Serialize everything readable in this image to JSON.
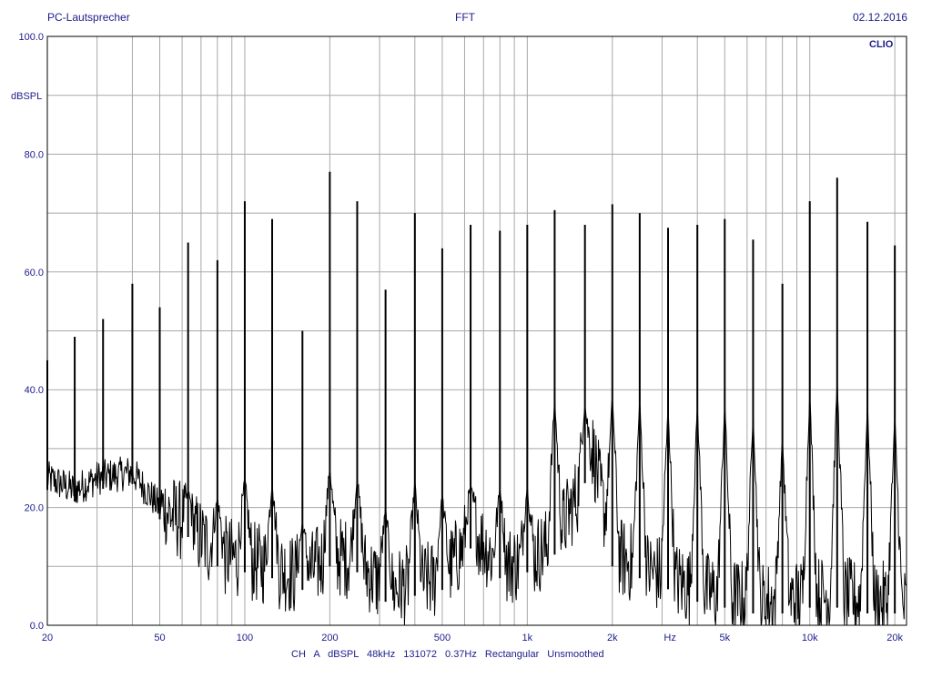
{
  "header": {
    "left": "PC-Lautsprecher",
    "center": "FFT",
    "right": "02.12.2016"
  },
  "brand": "CLIO",
  "footer": "CH A   dBSPL   48kHz   131072   0.37Hz   Rectangular   Unsmoothed",
  "colors": {
    "text": "#1c1c8c",
    "grid": "#a8a8a8",
    "trace": "#000000"
  },
  "chart_data": {
    "type": "line",
    "title": "FFT",
    "ylabel": "dBSPL",
    "xlabel": "Hz",
    "xscale": "log",
    "xlim": [
      20,
      22000
    ],
    "ylim": [
      0,
      100
    ],
    "grid": true,
    "y_ticks": [
      {
        "value": 0,
        "label": "0.0"
      },
      {
        "value": 20,
        "label": "20.0"
      },
      {
        "value": 40,
        "label": "40.0"
      },
      {
        "value": 60,
        "label": "60.0"
      },
      {
        "value": 80,
        "label": "80.0"
      },
      {
        "value": 100,
        "label": "100.0"
      }
    ],
    "x_ticks": [
      {
        "value": 20,
        "label": "20"
      },
      {
        "value": 50,
        "label": "50"
      },
      {
        "value": 100,
        "label": "100"
      },
      {
        "value": 200,
        "label": "200"
      },
      {
        "value": 500,
        "label": "500"
      },
      {
        "value": 1000,
        "label": "1k"
      },
      {
        "value": 2000,
        "label": "2k"
      },
      {
        "value": 3200,
        "label": "Hz"
      },
      {
        "value": 5000,
        "label": "5k"
      },
      {
        "value": 10000,
        "label": "10k"
      },
      {
        "value": 20000,
        "label": "20k"
      }
    ],
    "x_grid": [
      20,
      30,
      40,
      50,
      60,
      70,
      80,
      90,
      100,
      200,
      300,
      400,
      500,
      600,
      700,
      800,
      900,
      1000,
      2000,
      3000,
      4000,
      5000,
      6000,
      7000,
      8000,
      9000,
      10000,
      20000
    ],
    "peaks": [
      {
        "f": 20,
        "db": 45
      },
      {
        "f": 25,
        "db": 49
      },
      {
        "f": 31.5,
        "db": 52
      },
      {
        "f": 40,
        "db": 58
      },
      {
        "f": 50,
        "db": 54
      },
      {
        "f": 63,
        "db": 65
      },
      {
        "f": 80,
        "db": 62
      },
      {
        "f": 100,
        "db": 72
      },
      {
        "f": 125,
        "db": 69
      },
      {
        "f": 160,
        "db": 50
      },
      {
        "f": 200,
        "db": 77
      },
      {
        "f": 250,
        "db": 72
      },
      {
        "f": 315,
        "db": 57
      },
      {
        "f": 400,
        "db": 70
      },
      {
        "f": 500,
        "db": 64
      },
      {
        "f": 630,
        "db": 68
      },
      {
        "f": 800,
        "db": 67
      },
      {
        "f": 1000,
        "db": 68
      },
      {
        "f": 1250,
        "db": 70.5
      },
      {
        "f": 1600,
        "db": 68
      },
      {
        "f": 2000,
        "db": 71.5
      },
      {
        "f": 2500,
        "db": 70
      },
      {
        "f": 3150,
        "db": 67.5
      },
      {
        "f": 4000,
        "db": 68
      },
      {
        "f": 5000,
        "db": 69
      },
      {
        "f": 6300,
        "db": 65.5
      },
      {
        "f": 8000,
        "db": 58
      },
      {
        "f": 10000,
        "db": 72
      },
      {
        "f": 12500,
        "db": 76
      },
      {
        "f": 16000,
        "db": 68.5
      },
      {
        "f": 20000,
        "db": 64.5
      }
    ],
    "noise_floor": [
      {
        "f": 20,
        "db": 25
      },
      {
        "f": 25,
        "db": 23
      },
      {
        "f": 30,
        "db": 25
      },
      {
        "f": 40,
        "db": 26
      },
      {
        "f": 50,
        "db": 20
      },
      {
        "f": 63,
        "db": 17
      },
      {
        "f": 80,
        "db": 12
      },
      {
        "f": 100,
        "db": 11
      },
      {
        "f": 125,
        "db": 10
      },
      {
        "f": 160,
        "db": 8
      },
      {
        "f": 200,
        "db": 12
      },
      {
        "f": 250,
        "db": 11
      },
      {
        "f": 315,
        "db": 6
      },
      {
        "f": 400,
        "db": 7
      },
      {
        "f": 500,
        "db": 8
      },
      {
        "f": 650,
        "db": 16
      },
      {
        "f": 800,
        "db": 10
      },
      {
        "f": 1000,
        "db": 11
      },
      {
        "f": 1250,
        "db": 14
      },
      {
        "f": 1500,
        "db": 22
      },
      {
        "f": 1700,
        "db": 30
      },
      {
        "f": 2000,
        "db": 12
      },
      {
        "f": 2500,
        "db": 10
      },
      {
        "f": 3200,
        "db": 8
      },
      {
        "f": 4000,
        "db": 6
      },
      {
        "f": 5000,
        "db": 5
      },
      {
        "f": 6300,
        "db": 4
      },
      {
        "f": 8000,
        "db": 4
      },
      {
        "f": 10000,
        "db": 5
      },
      {
        "f": 12500,
        "db": 5
      },
      {
        "f": 16000,
        "db": 4
      },
      {
        "f": 20000,
        "db": 4
      },
      {
        "f": 22000,
        "db": 3
      }
    ]
  }
}
